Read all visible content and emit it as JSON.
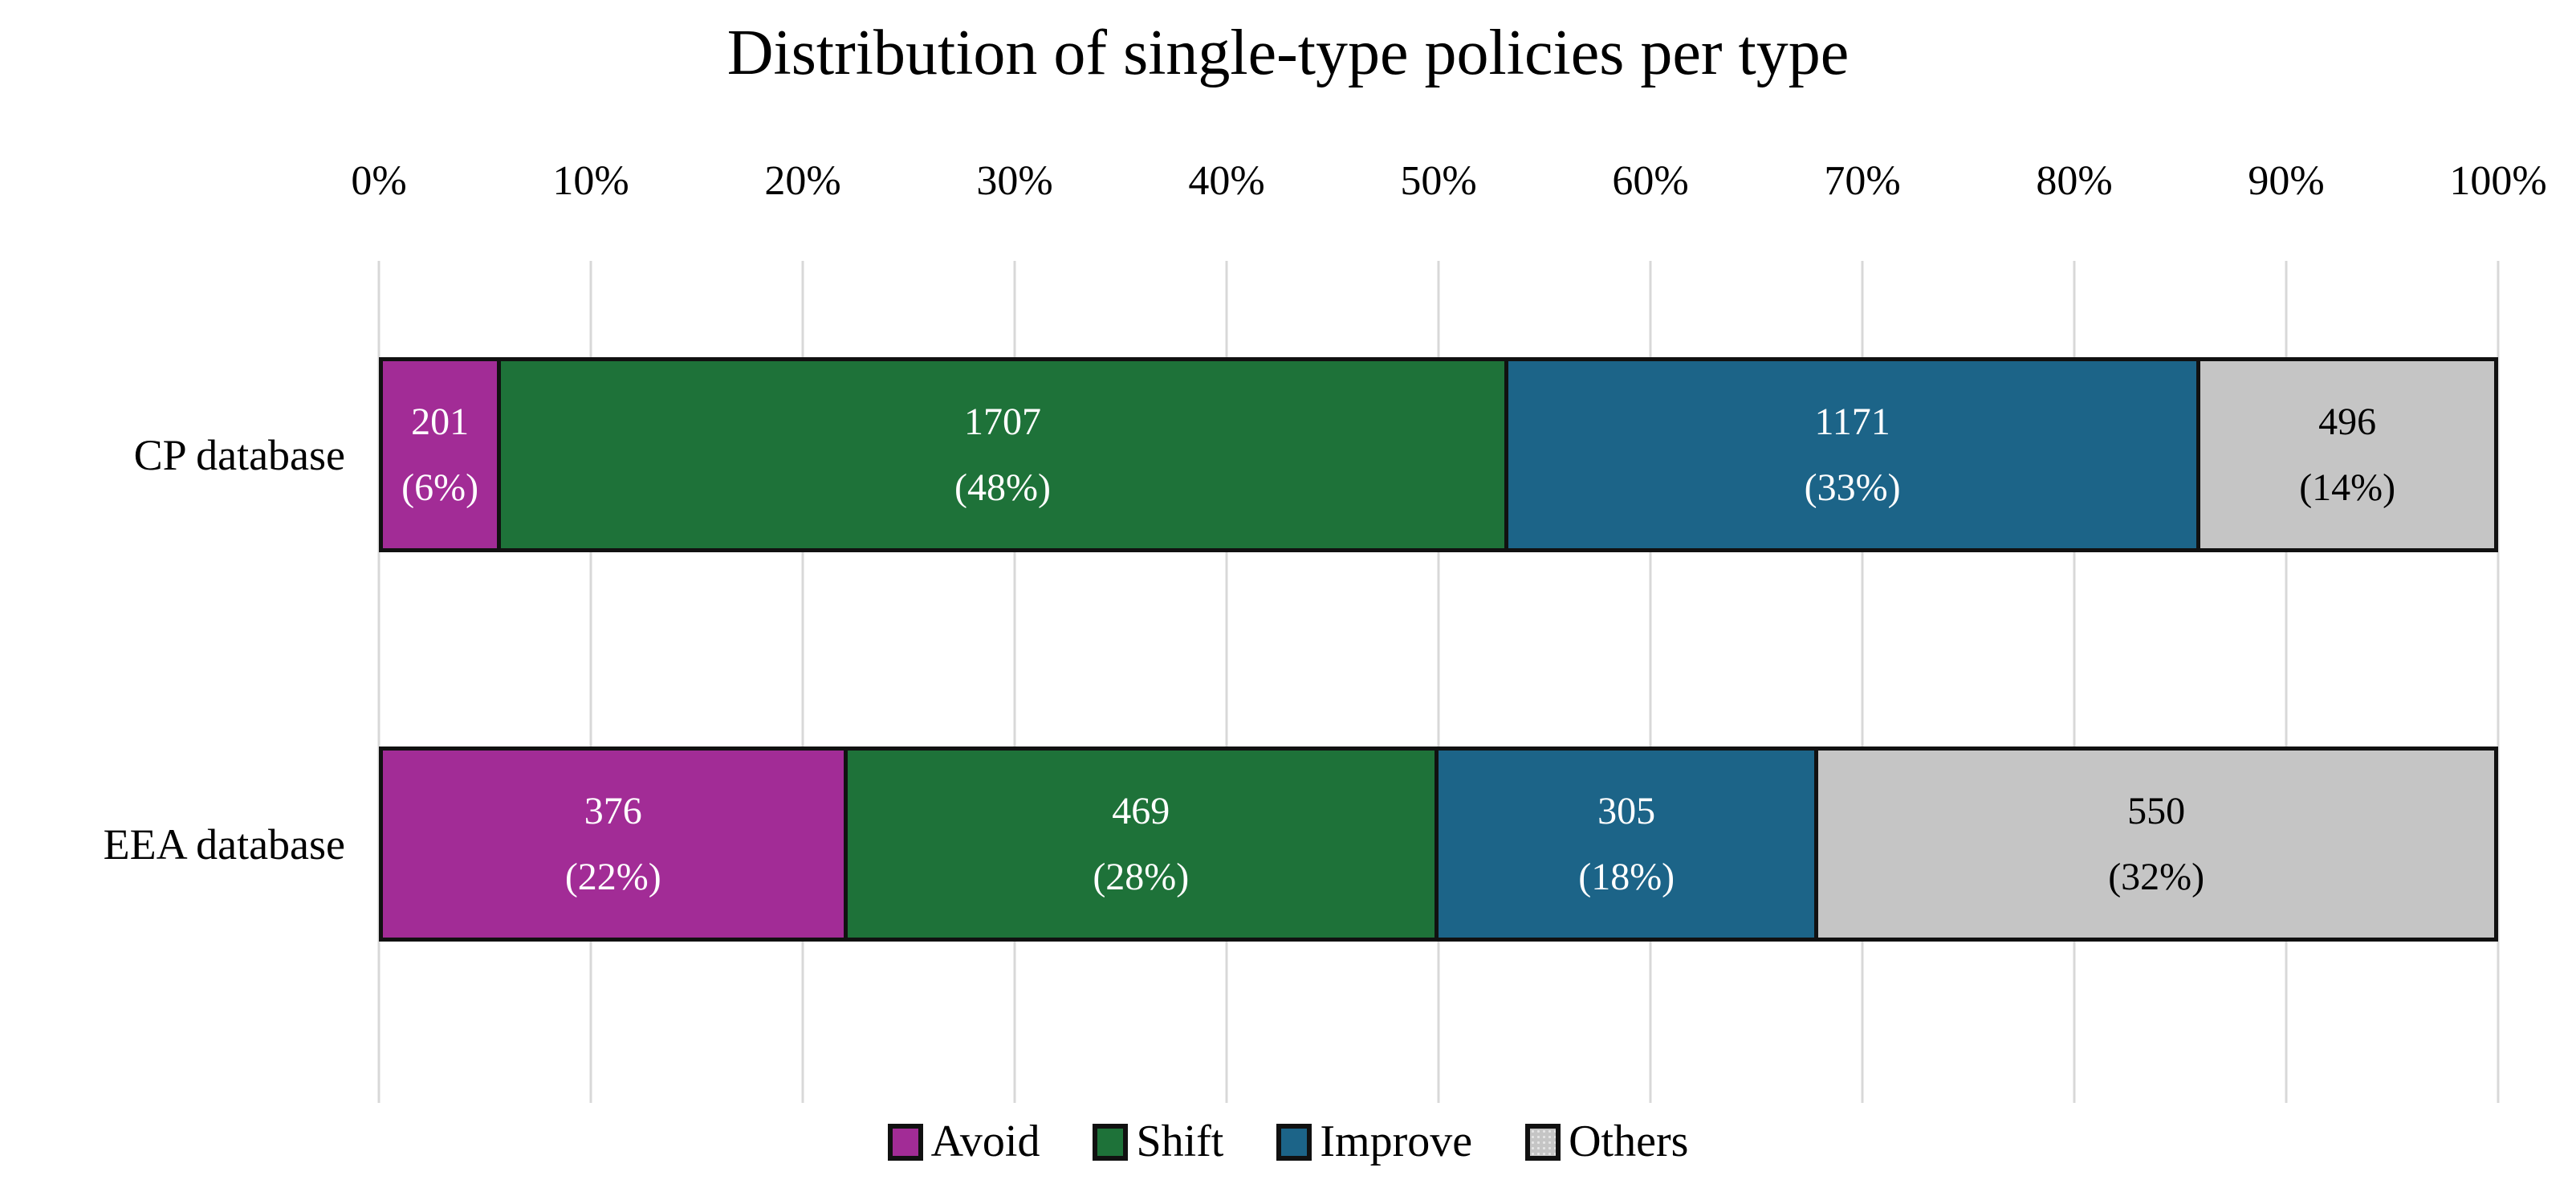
{
  "chart_data": {
    "type": "bar",
    "variant": "horizontal-stacked",
    "title": "Distribution of single-type policies per type",
    "axis": {
      "position": "top",
      "range": [
        0,
        100
      ],
      "tick_labels": [
        "0%",
        "10%",
        "20%",
        "30%",
        "40%",
        "50%",
        "60%",
        "70%",
        "80%",
        "90%",
        "100%"
      ],
      "grid": true
    },
    "categories": [
      "CP database",
      "EEA database"
    ],
    "series": [
      {
        "name": "Avoid",
        "color": "#A22C96",
        "label_color": "#FFFFFF",
        "texture": "solid",
        "values": [
          201,
          376
        ],
        "pct_labels": [
          "(6%)",
          "(22%)"
        ],
        "width_pct": [
          5.6,
          22
        ]
      },
      {
        "name": "Shift",
        "color": "#1E7239",
        "label_color": "#FFFFFF",
        "texture": "solid",
        "values": [
          1707,
          469
        ],
        "pct_labels": [
          "(48%)",
          "(28%)"
        ],
        "width_pct": [
          47.7,
          28
        ]
      },
      {
        "name": "Improve",
        "color": "#1C6488",
        "label_color": "#FFFFFF",
        "texture": "solid",
        "values": [
          1171,
          305
        ],
        "pct_labels": [
          "(33%)",
          "(18%)"
        ],
        "width_pct": [
          32.8,
          18
        ]
      },
      {
        "name": "Others",
        "color": "#C5C5C5",
        "label_color": "#000000",
        "texture": "dots",
        "values": [
          496,
          550
        ],
        "pct_labels": [
          "(14%)",
          "(32%)"
        ],
        "width_pct": [
          13.9,
          32
        ]
      }
    ],
    "legend": {
      "position": "bottom",
      "items": [
        "Avoid",
        "Shift",
        "Improve",
        "Others"
      ]
    },
    "style": {
      "grid_line_color": "#D8D8D8",
      "bar_border_color": "#111111",
      "text_color": "#000000",
      "background_color": "#FFFFFF"
    }
  }
}
